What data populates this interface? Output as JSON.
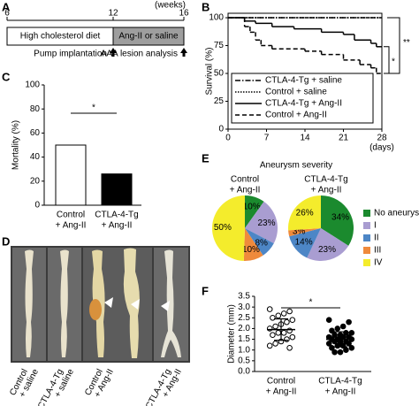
{
  "timeline": {
    "label": "A",
    "unit": "(weeks)",
    "ticks": [
      6,
      12,
      16
    ],
    "phases": [
      "High cholesterol diet",
      "Ang-II or saline"
    ],
    "events": [
      "Pump implantation",
      "AAA lesion analysis"
    ]
  },
  "photo": {
    "label": "D",
    "samples": [
      [
        "Control",
        "+ saline"
      ],
      [
        "CTLA-4-Tg",
        "+ saline"
      ],
      [
        "Control",
        "+ Ang-II"
      ],
      [
        "CTLA-4-Tg",
        "+ Ang-II"
      ]
    ]
  },
  "chart_data": [
    {
      "type": "survival",
      "label": "B",
      "y_label": "Survival (%)",
      "x_unit": "(days)",
      "xlim": [
        0,
        28
      ],
      "ylim": [
        0,
        104
      ],
      "xticks": [
        0,
        7,
        14,
        21,
        28
      ],
      "yticks": [
        0,
        25,
        50,
        75,
        100
      ],
      "series": [
        {
          "name": "CTLA-4-Tg + saline",
          "color": "#000000",
          "dash": "dashdot",
          "x": [
            0
          ],
          "values": [
            100
          ]
        },
        {
          "name": "Control + saline",
          "color": "#000000",
          "dash": "dotted",
          "x": [
            0
          ],
          "values": [
            100
          ]
        },
        {
          "name": "CTLA-4-Tg + Ang-II",
          "color": "#000000",
          "dash": "solid",
          "x": [
            0,
            3,
            5,
            8,
            12,
            17,
            21,
            23,
            26,
            27
          ],
          "values": [
            100,
            97,
            95,
            92,
            90,
            87,
            85,
            80,
            77,
            74
          ]
        },
        {
          "name": "Control + Ang-II",
          "color": "#000000",
          "dash": "dashed",
          "x": [
            0,
            3,
            4,
            5,
            6,
            8,
            14,
            17,
            21,
            24,
            26,
            27
          ],
          "values": [
            100,
            92,
            87,
            80,
            75,
            72,
            70,
            67,
            62,
            58,
            55,
            50
          ]
        }
      ],
      "annotations": [
        "**",
        "*"
      ]
    },
    {
      "type": "bar",
      "label": "C",
      "y_label": "Mortality (%)",
      "categories": [
        [
          "Control",
          "+ Ang-II"
        ],
        [
          "CTLA-4-Tg",
          "+ Ang-II"
        ]
      ],
      "values": [
        50,
        26
      ],
      "colors": [
        "#ffffff",
        "#000000"
      ],
      "ylim": [
        0,
        100
      ],
      "yticks": [
        0,
        20,
        40,
        60,
        80,
        100
      ],
      "annotations": [
        "*"
      ]
    },
    {
      "type": "pie",
      "label": "E",
      "title": "Aneurysm severity",
      "categories": [
        "No aneurysm",
        "I",
        "II",
        "III",
        "IV"
      ],
      "colors": [
        "#1b8a2e",
        "#a99dd1",
        "#4d86c6",
        "#ef8a3c",
        "#f4ec2c"
      ],
      "series": [
        {
          "name": [
            "Control",
            "+ Ang-II"
          ],
          "values": [
            10,
            23,
            8,
            10,
            50
          ],
          "value_labels": [
            "10%",
            "23%",
            "8%",
            "10%",
            "50%"
          ]
        },
        {
          "name": [
            "CTLA-4-Tg",
            "+ Ang-II"
          ],
          "values": [
            34,
            23,
            14,
            3,
            26
          ],
          "value_labels": [
            "34%",
            "23%",
            "14%",
            "3%",
            "26%"
          ]
        }
      ]
    },
    {
      "type": "dot",
      "label": "F",
      "y_label": "Diameter (mm)",
      "ylim": [
        0,
        3.5
      ],
      "yticks": [
        {
          "value": 0,
          "label": "0.0"
        },
        0.5,
        {
          "value": 1,
          "label": "1.0"
        },
        1.5,
        {
          "value": 2,
          "label": "2.0"
        },
        2.5,
        {
          "value": 3,
          "label": "3.0"
        },
        3.5
      ],
      "categories": [
        [
          "Control",
          "+ Ang-II"
        ],
        [
          "CTLA-4-Tg",
          "+ Ang-II"
        ]
      ],
      "groups": [
        {
          "fill": "#ffffff",
          "mean": 1.95,
          "sd": 0.5,
          "values": [
            2.9,
            2.8,
            2.7,
            2.6,
            2.5,
            2.4,
            2.3,
            2.2,
            2.1,
            2.0,
            1.9,
            1.8,
            1.8,
            1.7,
            1.6,
            1.5,
            1.4,
            1.3,
            1.2,
            1.1
          ]
        },
        {
          "fill": "#000000",
          "mean": 1.5,
          "sd": 0.35,
          "values": [
            2.4,
            2.3,
            2.1,
            2.0,
            1.9,
            1.8,
            1.8,
            1.7,
            1.7,
            1.6,
            1.6,
            1.6,
            1.5,
            1.5,
            1.5,
            1.4,
            1.4,
            1.4,
            1.3,
            1.3,
            1.2,
            1.2,
            1.1,
            1.1,
            1.0,
            0.9,
            0.9
          ]
        }
      ],
      "annotations": [
        "*"
      ]
    }
  ]
}
